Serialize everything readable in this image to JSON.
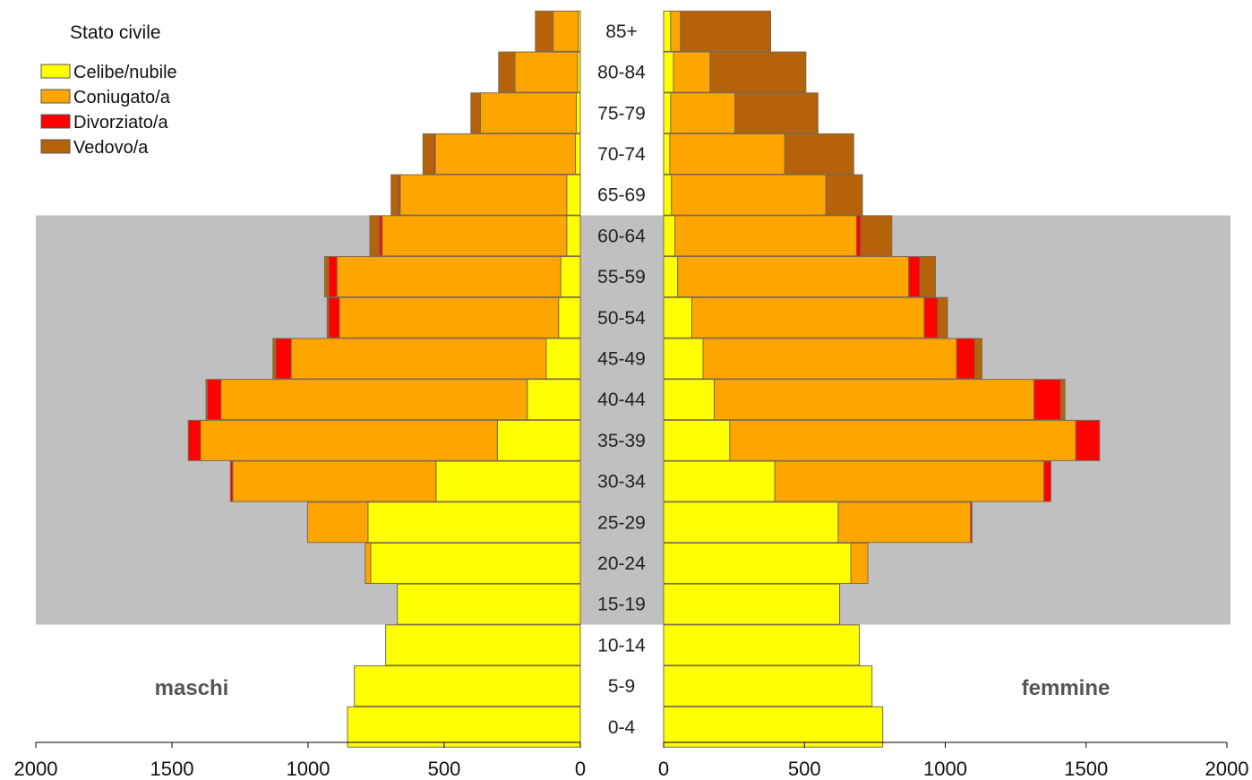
{
  "chart_data": {
    "type": "bar",
    "subtype": "population-pyramid",
    "legend": {
      "title": "Stato civile",
      "placement": "top-left",
      "items": [
        {
          "name": "Celibe/nubile",
          "color": "#ffff00"
        },
        {
          "name": "Coniugato/a",
          "color": "#ffa500"
        },
        {
          "name": "Divorziato/a",
          "color": "#ff0000"
        },
        {
          "name": "Vedovo/a",
          "color": "#b5620a"
        }
      ]
    },
    "sides": {
      "left": "maschi",
      "right": "femmine"
    },
    "categories": [
      "0-4",
      "5-9",
      "10-14",
      "15-19",
      "20-24",
      "25-29",
      "30-34",
      "35-39",
      "40-44",
      "45-49",
      "50-54",
      "55-59",
      "60-64",
      "65-69",
      "70-74",
      "75-79",
      "80-84",
      "85+"
    ],
    "highlight_band": {
      "from": "15-19",
      "to": "60-64",
      "color": "#c0c0c0"
    },
    "x_ticks": [
      2000,
      1500,
      1000,
      500,
      0
    ],
    "x_ticks_right": [
      0,
      500,
      1000,
      1500,
      2000
    ],
    "xlim": [
      0,
      2000
    ],
    "series": {
      "maschi": [
        {
          "name": "Celibe/nubile",
          "values": [
            855,
            830,
            715,
            672,
            770,
            780,
            530,
            305,
            195,
            125,
            80,
            72,
            50,
            50,
            18,
            15,
            10,
            8
          ]
        },
        {
          "name": "Coniugato/a",
          "values": [
            0,
            0,
            0,
            0,
            20,
            222,
            747,
            1090,
            1125,
            937,
            805,
            822,
            678,
            612,
            515,
            352,
            230,
            92
          ]
        },
        {
          "name": "Divorziato/a",
          "values": [
            0,
            0,
            0,
            0,
            0,
            0,
            8,
            45,
            50,
            57,
            40,
            30,
            10,
            5,
            5,
            0,
            0,
            0
          ]
        },
        {
          "name": "Vedovo/a",
          "values": [
            0,
            0,
            0,
            0,
            0,
            0,
            0,
            0,
            5,
            10,
            5,
            15,
            35,
            28,
            40,
            35,
            60,
            65
          ]
        }
      ],
      "femmine": [
        {
          "name": "Celibe/nubile",
          "values": [
            778,
            740,
            695,
            625,
            665,
            620,
            395,
            235,
            180,
            140,
            100,
            50,
            40,
            28,
            22,
            25,
            35,
            25
          ]
        },
        {
          "name": "Coniugato/a",
          "values": [
            0,
            0,
            0,
            0,
            60,
            470,
            955,
            1228,
            1135,
            900,
            825,
            820,
            645,
            548,
            408,
            228,
            130,
            35
          ]
        },
        {
          "name": "Divorziato/a",
          "values": [
            0,
            0,
            0,
            0,
            0,
            5,
            25,
            85,
            95,
            65,
            48,
            40,
            15,
            0,
            0,
            0,
            0,
            0
          ]
        },
        {
          "name": "Vedovo/a",
          "values": [
            0,
            0,
            0,
            0,
            0,
            0,
            0,
            0,
            15,
            25,
            35,
            55,
            110,
            130,
            245,
            295,
            340,
            320
          ]
        }
      ]
    }
  }
}
